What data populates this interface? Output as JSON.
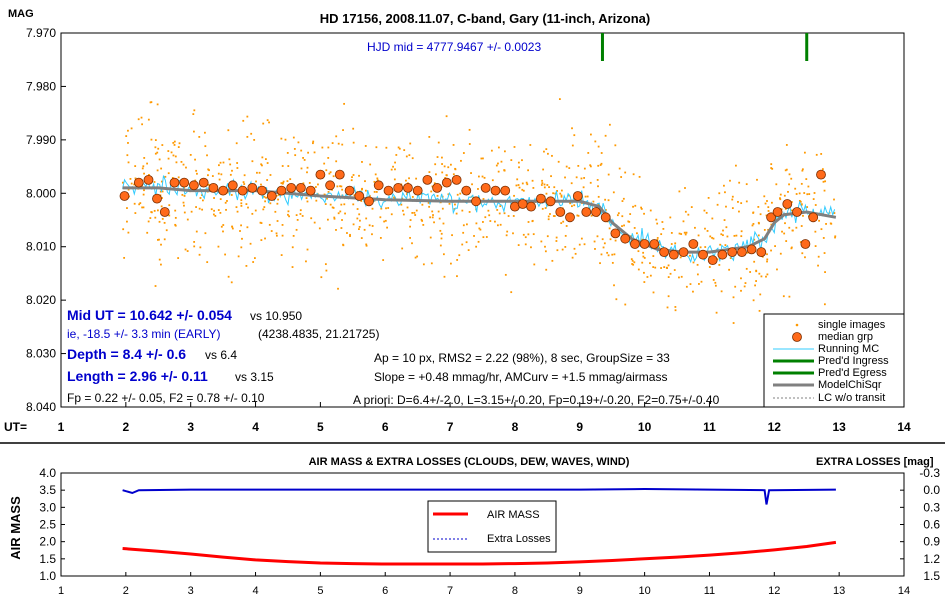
{
  "chart_data": [
    {
      "type": "scatter",
      "title": "HD 17156, 2008.11.07, C-band, Gary (11-inch, Arizona)",
      "ylabel": "MAG",
      "xlabel": "UT=",
      "xlim": [
        1,
        14
      ],
      "ylim": [
        7.97,
        8.04
      ],
      "y_inverted": true,
      "x_ticks": [
        "1",
        "2",
        "3",
        "4",
        "5",
        "6",
        "7",
        "8",
        "9",
        "10",
        "11",
        "12",
        "13",
        "14"
      ],
      "y_ticks": [
        "7.970",
        "7.980",
        "7.990",
        "8.000",
        "8.010",
        "8.020",
        "8.030",
        "8.040"
      ],
      "grid": false,
      "legend_position": "bottom-right",
      "hjd_mid_label": "HJD mid = 4777.9467 +/- 0.0023",
      "ingress_ut": 9.35,
      "egress_ut": 12.5,
      "annotations": {
        "mid_ut_main": "Mid UT = 10.642 +/- 0.054",
        "mid_ut_vs": "vs 10.950",
        "early": "ie, -18.5 +/- 3.3 min (EARLY)",
        "coords": "(4238.4835, 21.21725)",
        "depth_main": "Depth = 8.4 +/- 0.6",
        "depth_vs": "vs 6.4",
        "length_main": "Length = 2.96 +/- 0.11",
        "length_vs": "vs 3.15",
        "fp_line": "Fp = 0.22 +/- 0.05, F2 = 0.78 +/- 0.10",
        "ap_line": "Ap = 10 px, RMS2 = 2.22 (98%), 8 sec, GroupSize = 33",
        "slope_line": "Slope = +0.48 mmag/hr, AMCurv = +1.5 mmag/airmass",
        "apriori_line": "A priori: D=6.4+/-2.0, L=3.15+/-0.20, Fp=0.19+/-0.20, F2=0.75+/-0.40"
      },
      "legend": [
        {
          "name": "single images",
          "color": "#ff9900"
        },
        {
          "name": "median grp",
          "color": "#ff6600"
        },
        {
          "name": "Running MC",
          "color": "#33ccff"
        },
        {
          "name": "Pred'd Ingress",
          "color": "#008000"
        },
        {
          "name": "Pred'd Egress",
          "color": "#008000"
        },
        {
          "name": "ModelChiSqr",
          "color": "#808080"
        },
        {
          "name": "LC w/o transit",
          "color": "#808080"
        }
      ],
      "colors": {
        "single": "#ff9900",
        "median": "#ff6a1a",
        "running": "#33ccff",
        "model": "#808080",
        "pred": "#008000",
        "blue_text": "#0000cc"
      },
      "single_images": {
        "x_range": [
          1.95,
          12.95
        ],
        "count": 1100,
        "scatter_mag": 0.008
      },
      "model_points": [
        [
          1.95,
          7.999
        ],
        [
          2.5,
          7.999
        ],
        [
          3.0,
          7.9995
        ],
        [
          4.0,
          7.9995
        ],
        [
          5.0,
          8.0005
        ],
        [
          6.0,
          8.0012
        ],
        [
          7.0,
          8.0015
        ],
        [
          8.0,
          8.0015
        ],
        [
          9.0,
          8.0015
        ],
        [
          9.3,
          8.0025
        ],
        [
          9.5,
          8.0055
        ],
        [
          9.8,
          8.0085
        ],
        [
          10.2,
          8.0105
        ],
        [
          10.6,
          8.011
        ],
        [
          11.0,
          8.011
        ],
        [
          11.6,
          8.01
        ],
        [
          11.85,
          8.0085
        ],
        [
          12.0,
          8.0055
        ],
        [
          12.15,
          8.004
        ],
        [
          12.5,
          8.0035
        ],
        [
          12.95,
          8.0045
        ]
      ],
      "median_grp": [
        [
          1.98,
          8.0005
        ],
        [
          2.2,
          7.998
        ],
        [
          2.35,
          7.9975
        ],
        [
          2.48,
          8.001
        ],
        [
          2.6,
          8.0035
        ],
        [
          2.75,
          7.998
        ],
        [
          2.9,
          7.998
        ],
        [
          3.05,
          7.9985
        ],
        [
          3.2,
          7.998
        ],
        [
          3.35,
          7.999
        ],
        [
          3.5,
          7.9995
        ],
        [
          3.65,
          7.9985
        ],
        [
          3.8,
          7.9995
        ],
        [
          3.95,
          7.999
        ],
        [
          4.1,
          7.9995
        ],
        [
          4.25,
          8.0005
        ],
        [
          4.4,
          7.9995
        ],
        [
          4.55,
          7.999
        ],
        [
          4.7,
          7.999
        ],
        [
          4.85,
          7.9995
        ],
        [
          5.0,
          7.9965
        ],
        [
          5.15,
          7.9985
        ],
        [
          5.3,
          7.9965
        ],
        [
          5.45,
          7.9995
        ],
        [
          5.6,
          8.0005
        ],
        [
          5.75,
          8.0015
        ],
        [
          5.9,
          7.9985
        ],
        [
          6.05,
          7.9995
        ],
        [
          6.2,
          7.999
        ],
        [
          6.35,
          7.999
        ],
        [
          6.5,
          7.9995
        ],
        [
          6.65,
          7.9975
        ],
        [
          6.8,
          7.999
        ],
        [
          6.95,
          7.998
        ],
        [
          7.1,
          7.9975
        ],
        [
          7.25,
          7.9995
        ],
        [
          7.4,
          8.0015
        ],
        [
          7.55,
          7.999
        ],
        [
          7.7,
          7.9995
        ],
        [
          7.85,
          7.9995
        ],
        [
          8.0,
          8.0025
        ],
        [
          8.12,
          8.002
        ],
        [
          8.25,
          8.0025
        ],
        [
          8.4,
          8.001
        ],
        [
          8.55,
          8.0015
        ],
        [
          8.7,
          8.0035
        ],
        [
          8.85,
          8.0045
        ],
        [
          8.97,
          8.0005
        ],
        [
          9.1,
          8.0035
        ],
        [
          9.25,
          8.0035
        ],
        [
          9.4,
          8.0045
        ],
        [
          9.55,
          8.0075
        ],
        [
          9.7,
          8.0085
        ],
        [
          9.85,
          8.0095
        ],
        [
          10.0,
          8.0095
        ],
        [
          10.15,
          8.0095
        ],
        [
          10.3,
          8.011
        ],
        [
          10.45,
          8.0115
        ],
        [
          10.6,
          8.011
        ],
        [
          10.75,
          8.0095
        ],
        [
          10.9,
          8.0115
        ],
        [
          11.05,
          8.0125
        ],
        [
          11.2,
          8.0115
        ],
        [
          11.35,
          8.011
        ],
        [
          11.5,
          8.011
        ],
        [
          11.65,
          8.0105
        ],
        [
          11.8,
          8.011
        ],
        [
          11.95,
          8.0045
        ],
        [
          12.05,
          8.0035
        ],
        [
          12.2,
          8.002
        ],
        [
          12.35,
          8.0035
        ],
        [
          12.48,
          8.0095
        ],
        [
          12.6,
          8.0045
        ],
        [
          12.72,
          7.9965
        ]
      ]
    },
    {
      "type": "line",
      "title": "AIR MASS & EXTRA LOSSES (CLOUDS, DEW, WAVES, WIND)",
      "ylabel": "AIR MASS",
      "y2label": "EXTRA LOSSES [mag]",
      "xlim": [
        1,
        14
      ],
      "ylim": [
        1.0,
        4.0
      ],
      "y2lim": [
        -0.3,
        1.5
      ],
      "x_ticks": [
        "1",
        "2",
        "3",
        "4",
        "5",
        "6",
        "7",
        "8",
        "9",
        "10",
        "11",
        "12",
        "13",
        "14"
      ],
      "y_ticks": [
        "1.0",
        "1.5",
        "2.0",
        "2.5",
        "3.0",
        "3.5",
        "4.0"
      ],
      "y2_ticks": [
        "-0.3",
        "0.0",
        "0.3",
        "0.6",
        "0.9",
        "1.2",
        "1.5"
      ],
      "legend_position": "center",
      "series": [
        {
          "name": "AIR MASS",
          "color": "#ff0000",
          "points": [
            [
              1.95,
              1.8
            ],
            [
              2.5,
              1.72
            ],
            [
              3.0,
              1.64
            ],
            [
              3.5,
              1.55
            ],
            [
              4.0,
              1.47
            ],
            [
              4.5,
              1.42
            ],
            [
              5.0,
              1.38
            ],
            [
              5.5,
              1.36
            ],
            [
              6.0,
              1.35
            ],
            [
              6.5,
              1.35
            ],
            [
              7.0,
              1.35
            ],
            [
              7.5,
              1.35
            ],
            [
              8.0,
              1.36
            ],
            [
              8.5,
              1.38
            ],
            [
              9.0,
              1.41
            ],
            [
              9.5,
              1.45
            ],
            [
              10.0,
              1.5
            ],
            [
              10.5,
              1.55
            ],
            [
              11.0,
              1.61
            ],
            [
              11.5,
              1.68
            ],
            [
              12.0,
              1.76
            ],
            [
              12.5,
              1.86
            ],
            [
              12.95,
              1.98
            ]
          ]
        },
        {
          "name": "Extra Losses",
          "color": "#0000cc",
          "points": [
            [
              1.95,
              0.0
            ],
            [
              2.1,
              0.05
            ],
            [
              2.2,
              0.0
            ],
            [
              3.0,
              -0.01
            ],
            [
              5.0,
              -0.01
            ],
            [
              7.0,
              -0.01
            ],
            [
              9.0,
              -0.01
            ],
            [
              10.0,
              -0.02
            ],
            [
              11.0,
              -0.01
            ],
            [
              11.85,
              0.0
            ],
            [
              11.88,
              0.25
            ],
            [
              11.92,
              0.0
            ],
            [
              12.95,
              -0.01
            ]
          ]
        }
      ]
    }
  ]
}
